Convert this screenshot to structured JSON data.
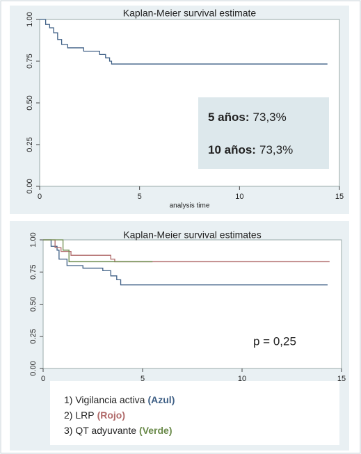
{
  "chart_data": [
    {
      "type": "line",
      "step": true,
      "title": "Kaplan-Meier survival estimate",
      "xlabel": "analysis time",
      "x": [
        0,
        0.3,
        0.5,
        0.7,
        0.9,
        1.1,
        1.4,
        2.2,
        3.0,
        3.3,
        3.5,
        3.6,
        14.4
      ],
      "values": [
        1,
        0.97,
        0.95,
        0.92,
        0.88,
        0.85,
        0.83,
        0.81,
        0.79,
        0.77,
        0.75,
        0.733,
        0.733
      ],
      "color": "#3e5f85",
      "xlim": [
        0,
        15
      ],
      "xticks": [
        0,
        5,
        10,
        15
      ],
      "ylim": [
        0,
        1
      ],
      "yticks": [
        {
          "value": 0,
          "label": "0.00"
        },
        {
          "value": 0.25,
          "label": "0.25"
        },
        {
          "value": 0.5,
          "label": "0.50"
        },
        {
          "value": 0.75,
          "label": "0.75"
        },
        {
          "value": 1,
          "label": "1.00"
        }
      ],
      "annotations": [
        {
          "label": "5 años:",
          "text": "73,3%"
        },
        {
          "label": "10 años:",
          "text": "73,3%"
        }
      ]
    },
    {
      "type": "line",
      "step": true,
      "title": "Kaplan-Meier survival estimates",
      "series": [
        {
          "name": "1) Vigilancia activa",
          "color_label": "(Azul)",
          "color": "#3e5f85",
          "x": [
            0,
            0.4,
            0.7,
            0.8,
            1.2,
            2.0,
            3.0,
            3.4,
            3.7,
            3.9,
            14.3
          ],
          "values": [
            1,
            0.95,
            0.92,
            0.85,
            0.8,
            0.78,
            0.76,
            0.72,
            0.69,
            0.65,
            0.65
          ]
        },
        {
          "name": "2) LRP",
          "color_label": "(Rojo)",
          "color": "#b06a6a",
          "x": [
            0,
            0.6,
            0.9,
            1.4,
            3.4,
            3.6,
            14.4
          ],
          "values": [
            1,
            0.94,
            0.91,
            0.88,
            0.85,
            0.83,
            0.83
          ]
        },
        {
          "name": "3) QT adyuvante",
          "color_label": "(Verde)",
          "color": "#6a8a4a",
          "x": [
            0,
            1.0,
            1.3,
            5.5
          ],
          "values": [
            1,
            0.92,
            0.83,
            0.83
          ]
        }
      ],
      "xlim": [
        0,
        15
      ],
      "xticks": [
        0,
        5,
        10,
        15
      ],
      "ylim": [
        0,
        1
      ],
      "yticks": [
        {
          "value": 0,
          "label": "0.00"
        },
        {
          "value": 0.25,
          "label": "0.25"
        },
        {
          "value": 0.5,
          "label": "0.50"
        },
        {
          "value": 0.75,
          "label": "0.75"
        },
        {
          "value": 1,
          "label": "1.00"
        }
      ],
      "annotations": [
        {
          "text": "p = 0,25"
        }
      ]
    }
  ]
}
